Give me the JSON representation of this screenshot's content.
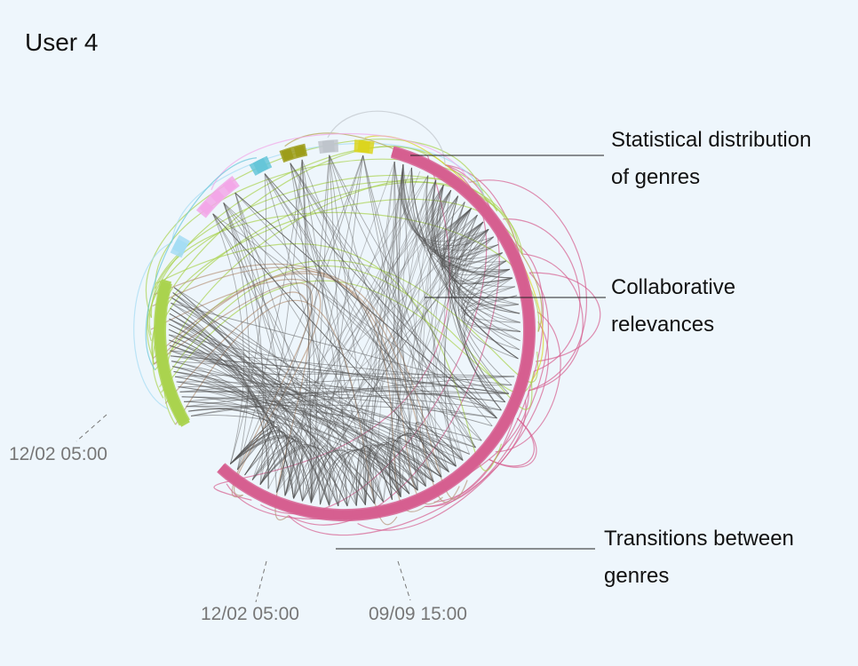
{
  "title": "User 4",
  "annotations": {
    "genre_distribution": [
      "Statistical distribution",
      "of genres"
    ],
    "collaborative": [
      "Collaborative",
      "relevances"
    ],
    "transitions": [
      "Transitions between",
      "genres"
    ]
  },
  "time_labels": {
    "left": "12/02 05:00",
    "bottom_left": "12/02 05:00",
    "bottom_right": "09/09 15:00"
  },
  "colors": {
    "background": "#eef6fc",
    "genres": [
      "#aad34e",
      "#a4dcf3",
      "#f2a7e8",
      "#65c5d8",
      "#9c9c18",
      "#bfc4cb",
      "#dbd51e",
      "#d65e8f"
    ],
    "relevance_edges": "#555555",
    "annotation_line": "#222222",
    "time_line": "#777777"
  },
  "genre_counts": [
    26,
    1,
    3,
    1,
    2,
    1,
    1,
    70
  ]
}
